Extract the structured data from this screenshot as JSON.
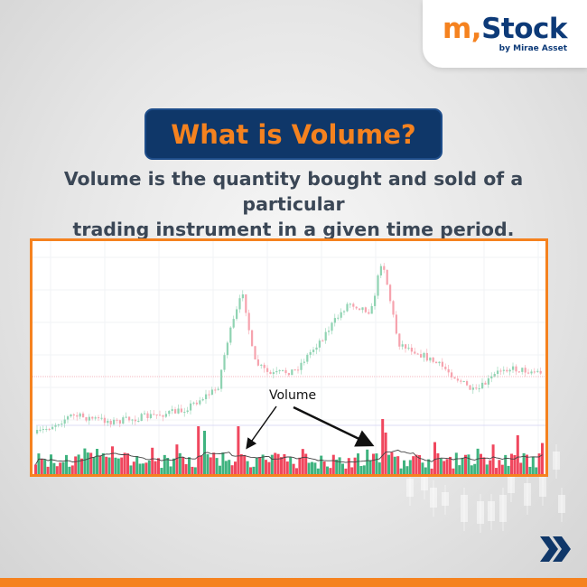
{
  "logo": {
    "brand_prefix": "m,",
    "brand_name": "Stock",
    "tagline": "by Mirae Asset"
  },
  "title": "What is Volume?",
  "subtitle_line1": "Volume is the quantity bought and sold of a particular",
  "subtitle_line2": "trading instrument in a given time period.",
  "chart": {
    "annotation": "Volume",
    "up_color": "#3fb37f",
    "down_color": "#f0475e",
    "ma_color": "#444444"
  },
  "colors": {
    "accent": "#f5821f",
    "navy": "#0f3769"
  },
  "icons": {
    "next": "double-chevron-right-icon"
  }
}
